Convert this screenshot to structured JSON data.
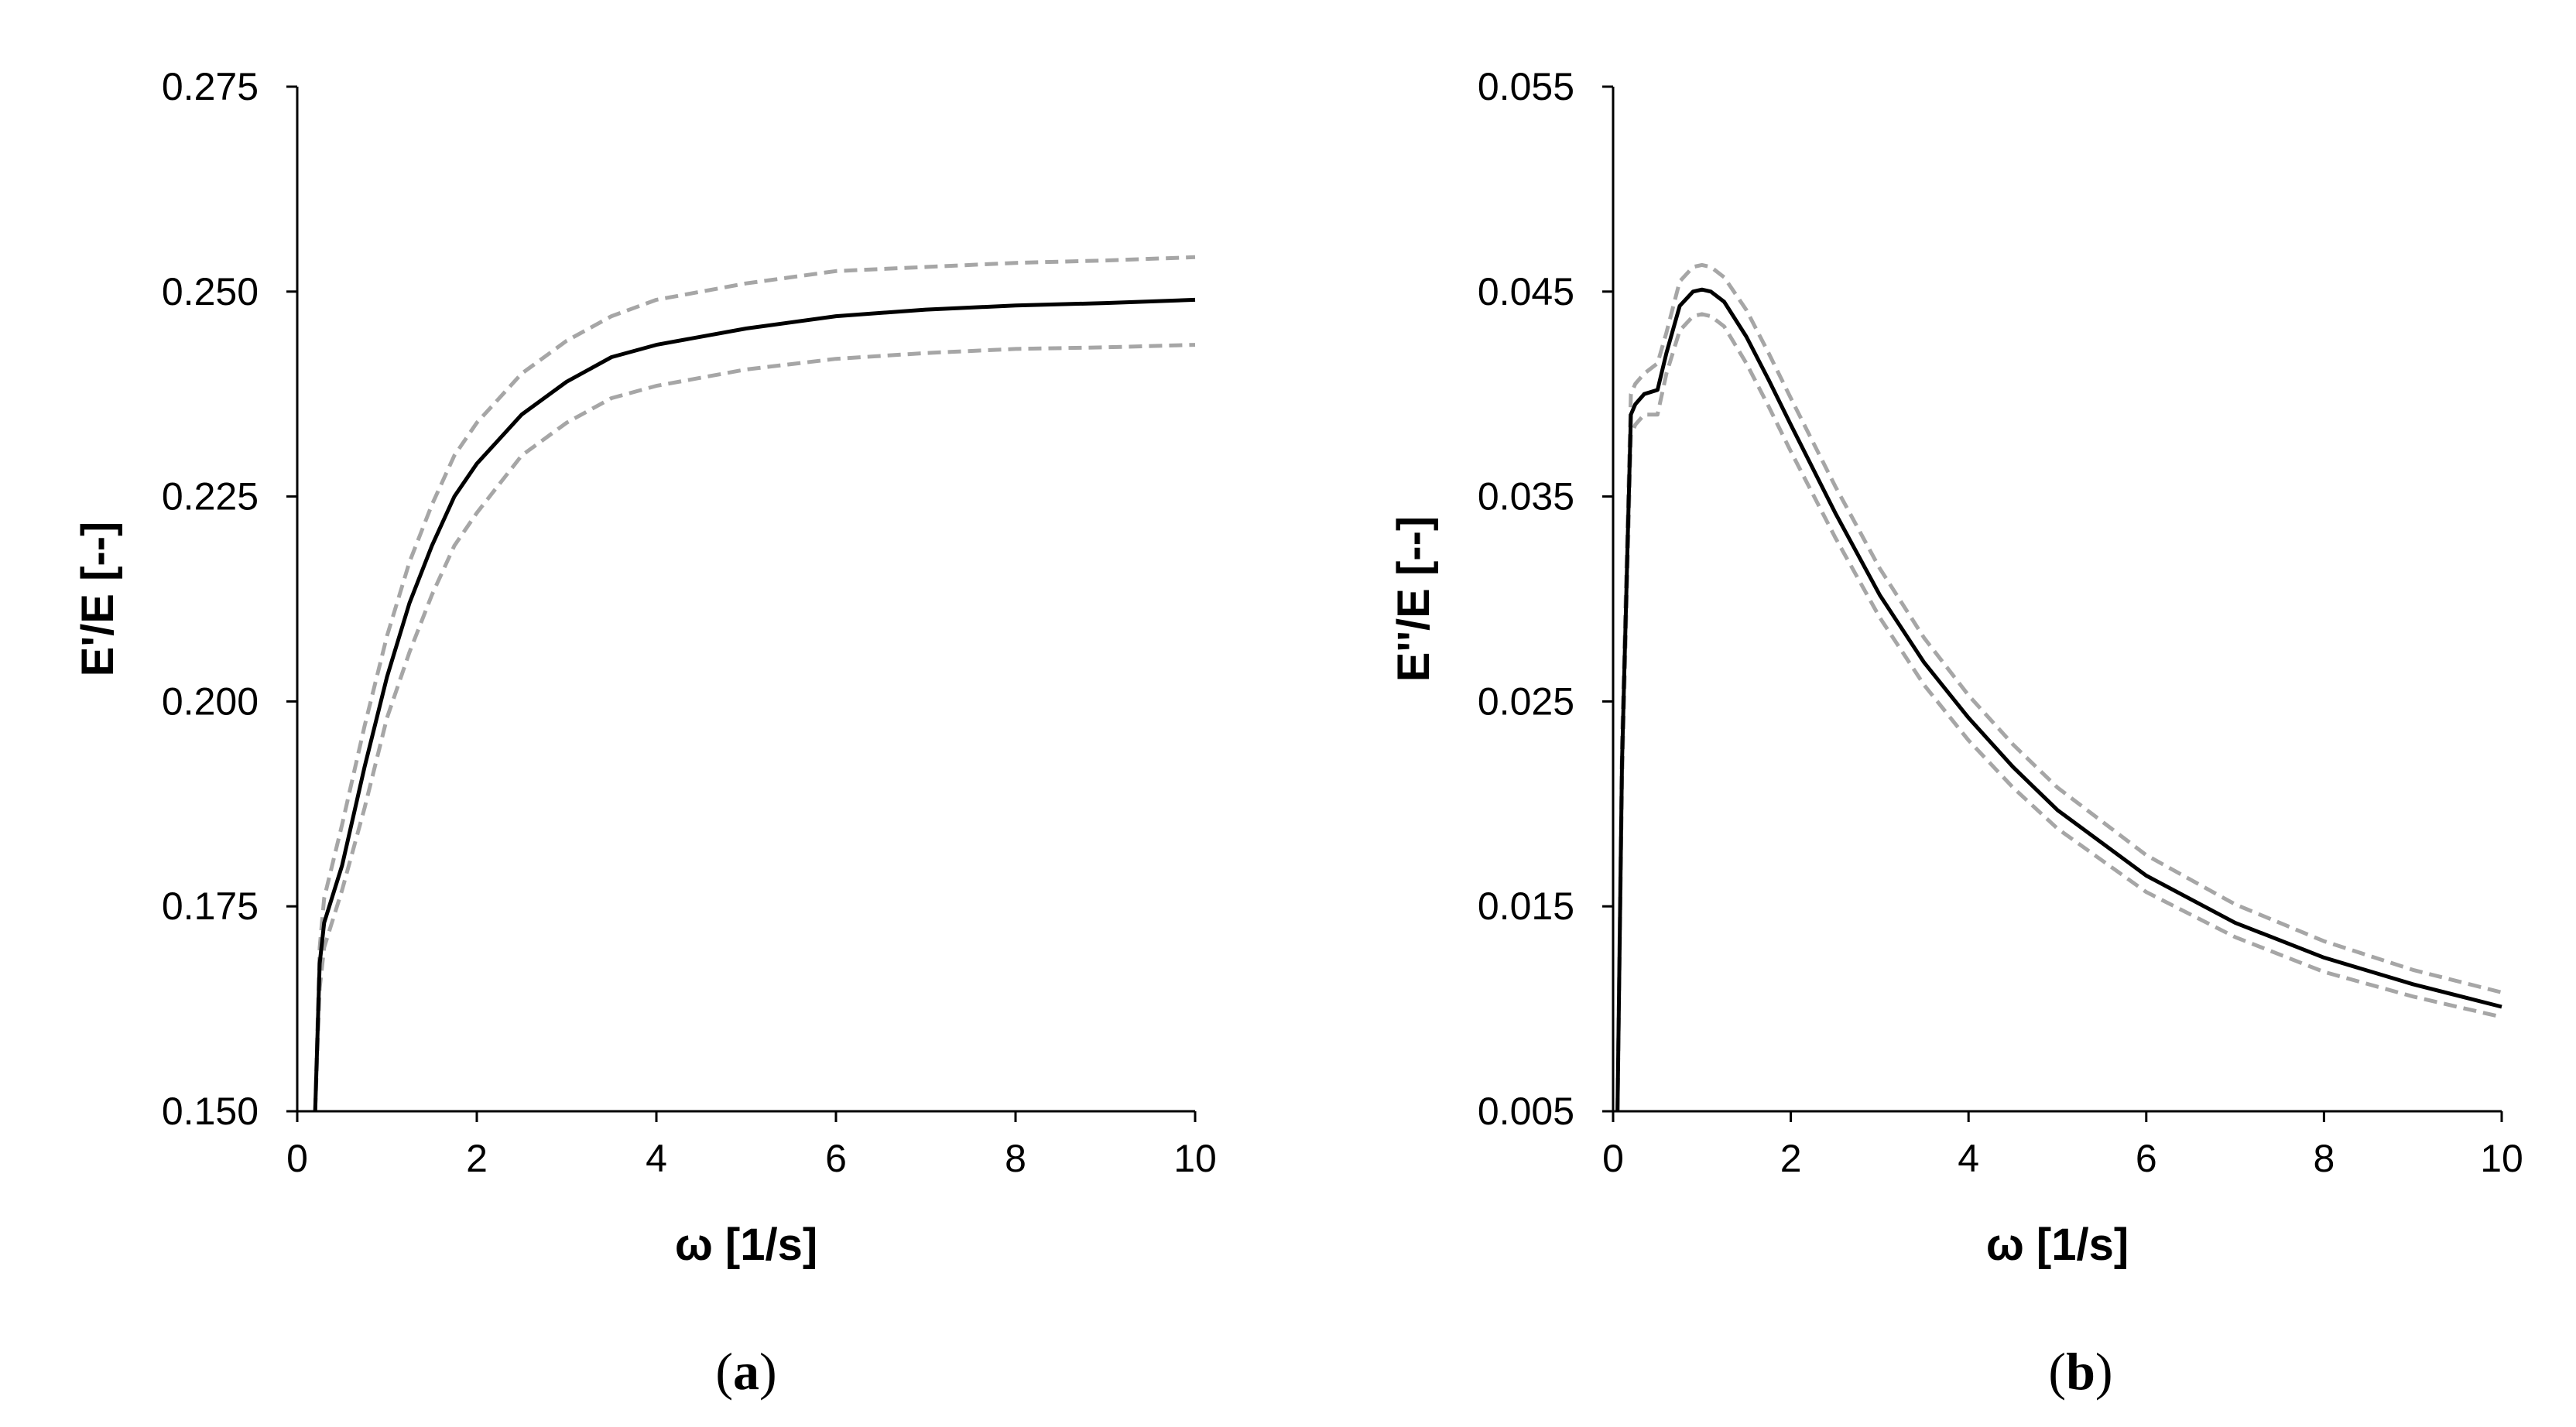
{
  "chart_data": [
    {
      "id": "a",
      "type": "line",
      "caption": "a",
      "xlabel": "ω [1/s]",
      "ylabel": "E'/E [--]",
      "xlim": [
        0,
        10
      ],
      "ylim": [
        0.15,
        0.275
      ],
      "xticks": [
        0,
        2,
        4,
        6,
        8,
        10
      ],
      "yticks": [
        0.15,
        0.175,
        0.2,
        0.225,
        0.25,
        0.275
      ],
      "xtick_labels": [
        "0",
        "2",
        "4",
        "6",
        "8",
        "10"
      ],
      "ytick_labels": [
        "0.150",
        "0.175",
        "0.200",
        "0.225",
        "0.250",
        "0.275"
      ],
      "grid": false,
      "series": [
        {
          "style": "solid",
          "color": "#000000",
          "x": [
            0.2,
            0.25,
            0.3,
            0.5,
            0.75,
            1.0,
            1.25,
            1.5,
            1.75,
            2.0,
            2.5,
            3.0,
            3.5,
            4.0,
            5.0,
            6.0,
            7.0,
            8.0,
            9.0,
            10.0
          ],
          "y": [
            0.15,
            0.168,
            0.173,
            0.18,
            0.192,
            0.203,
            0.212,
            0.219,
            0.225,
            0.229,
            0.235,
            0.239,
            0.242,
            0.2435,
            0.2455,
            0.247,
            0.2478,
            0.2483,
            0.2486,
            0.249
          ]
        },
        {
          "style": "dashed",
          "color": "#a6a6a6",
          "x": [
            0.2,
            0.25,
            0.3,
            0.5,
            0.75,
            1.0,
            1.25,
            1.5,
            1.75,
            2.0,
            2.5,
            3.0,
            3.5,
            4.0,
            5.0,
            6.0,
            7.0,
            8.0,
            9.0,
            10.0
          ],
          "y": [
            0.15,
            0.17,
            0.176,
            0.185,
            0.197,
            0.208,
            0.217,
            0.224,
            0.23,
            0.234,
            0.24,
            0.244,
            0.247,
            0.249,
            0.251,
            0.2525,
            0.253,
            0.2535,
            0.2538,
            0.2542
          ]
        },
        {
          "style": "dashed",
          "color": "#a6a6a6",
          "x": [
            0.2,
            0.25,
            0.3,
            0.5,
            0.75,
            1.0,
            1.25,
            1.5,
            1.75,
            2.0,
            2.5,
            3.0,
            3.5,
            4.0,
            5.0,
            6.0,
            7.0,
            8.0,
            9.0,
            10.0
          ],
          "y": [
            0.15,
            0.165,
            0.17,
            0.177,
            0.187,
            0.198,
            0.206,
            0.213,
            0.219,
            0.223,
            0.23,
            0.234,
            0.237,
            0.2385,
            0.2405,
            0.2418,
            0.2425,
            0.243,
            0.2432,
            0.2435
          ]
        }
      ]
    },
    {
      "id": "b",
      "type": "line",
      "caption": "b",
      "xlabel": "ω [1/s]",
      "ylabel": "E''/E [--]",
      "xlim": [
        0,
        10
      ],
      "ylim": [
        0.005,
        0.055
      ],
      "xticks": [
        0,
        2,
        4,
        6,
        8,
        10
      ],
      "yticks": [
        0.005,
        0.015,
        0.025,
        0.035,
        0.045,
        0.055
      ],
      "xtick_labels": [
        "0",
        "2",
        "4",
        "6",
        "8",
        "10"
      ],
      "ytick_labels": [
        "0.005",
        "0.015",
        "0.025",
        "0.035",
        "0.045",
        "0.055"
      ],
      "grid": false,
      "series": [
        {
          "style": "solid",
          "color": "#000000",
          "x": [
            0.05,
            0.1,
            0.2,
            0.25,
            0.35,
            0.5,
            0.6,
            0.75,
            0.9,
            1.0,
            1.1,
            1.25,
            1.5,
            1.75,
            2.0,
            2.5,
            3.0,
            3.5,
            4.0,
            4.5,
            5.0,
            6.0,
            7.0,
            8.0,
            9.0,
            10.0
          ],
          "y": [
            0.005,
            0.022,
            0.039,
            0.0395,
            0.04,
            0.0402,
            0.042,
            0.0443,
            0.045,
            0.0451,
            0.045,
            0.0445,
            0.0428,
            0.0407,
            0.0385,
            0.0342,
            0.0302,
            0.0269,
            0.0242,
            0.0218,
            0.0197,
            0.0165,
            0.0142,
            0.0125,
            0.0112,
            0.0101
          ]
        },
        {
          "style": "dashed",
          "color": "#a6a6a6",
          "x": [
            0.05,
            0.1,
            0.2,
            0.25,
            0.35,
            0.5,
            0.6,
            0.75,
            0.9,
            1.0,
            1.1,
            1.25,
            1.5,
            1.75,
            2.0,
            2.5,
            3.0,
            3.5,
            4.0,
            4.5,
            5.0,
            6.0,
            7.0,
            8.0,
            9.0,
            10.0
          ],
          "y": [
            0.005,
            0.023,
            0.04,
            0.0405,
            0.041,
            0.0415,
            0.043,
            0.0455,
            0.0462,
            0.0463,
            0.0462,
            0.0457,
            0.0441,
            0.042,
            0.0398,
            0.0355,
            0.0315,
            0.0281,
            0.0253,
            0.0229,
            0.0208,
            0.0175,
            0.0151,
            0.0133,
            0.0119,
            0.0108
          ]
        },
        {
          "style": "dashed",
          "color": "#a6a6a6",
          "x": [
            0.05,
            0.1,
            0.2,
            0.25,
            0.35,
            0.5,
            0.6,
            0.75,
            0.9,
            1.0,
            1.1,
            1.25,
            1.5,
            1.75,
            2.0,
            2.5,
            3.0,
            3.5,
            4.0,
            4.5,
            5.0,
            6.0,
            7.0,
            8.0,
            9.0,
            10.0
          ],
          "y": [
            0.005,
            0.021,
            0.038,
            0.0385,
            0.039,
            0.039,
            0.041,
            0.0431,
            0.0438,
            0.0439,
            0.0438,
            0.0433,
            0.0415,
            0.0394,
            0.0372,
            0.033,
            0.0291,
            0.0258,
            0.0231,
            0.0208,
            0.0188,
            0.0157,
            0.0135,
            0.0118,
            0.0106,
            0.0096
          ]
        }
      ]
    }
  ]
}
